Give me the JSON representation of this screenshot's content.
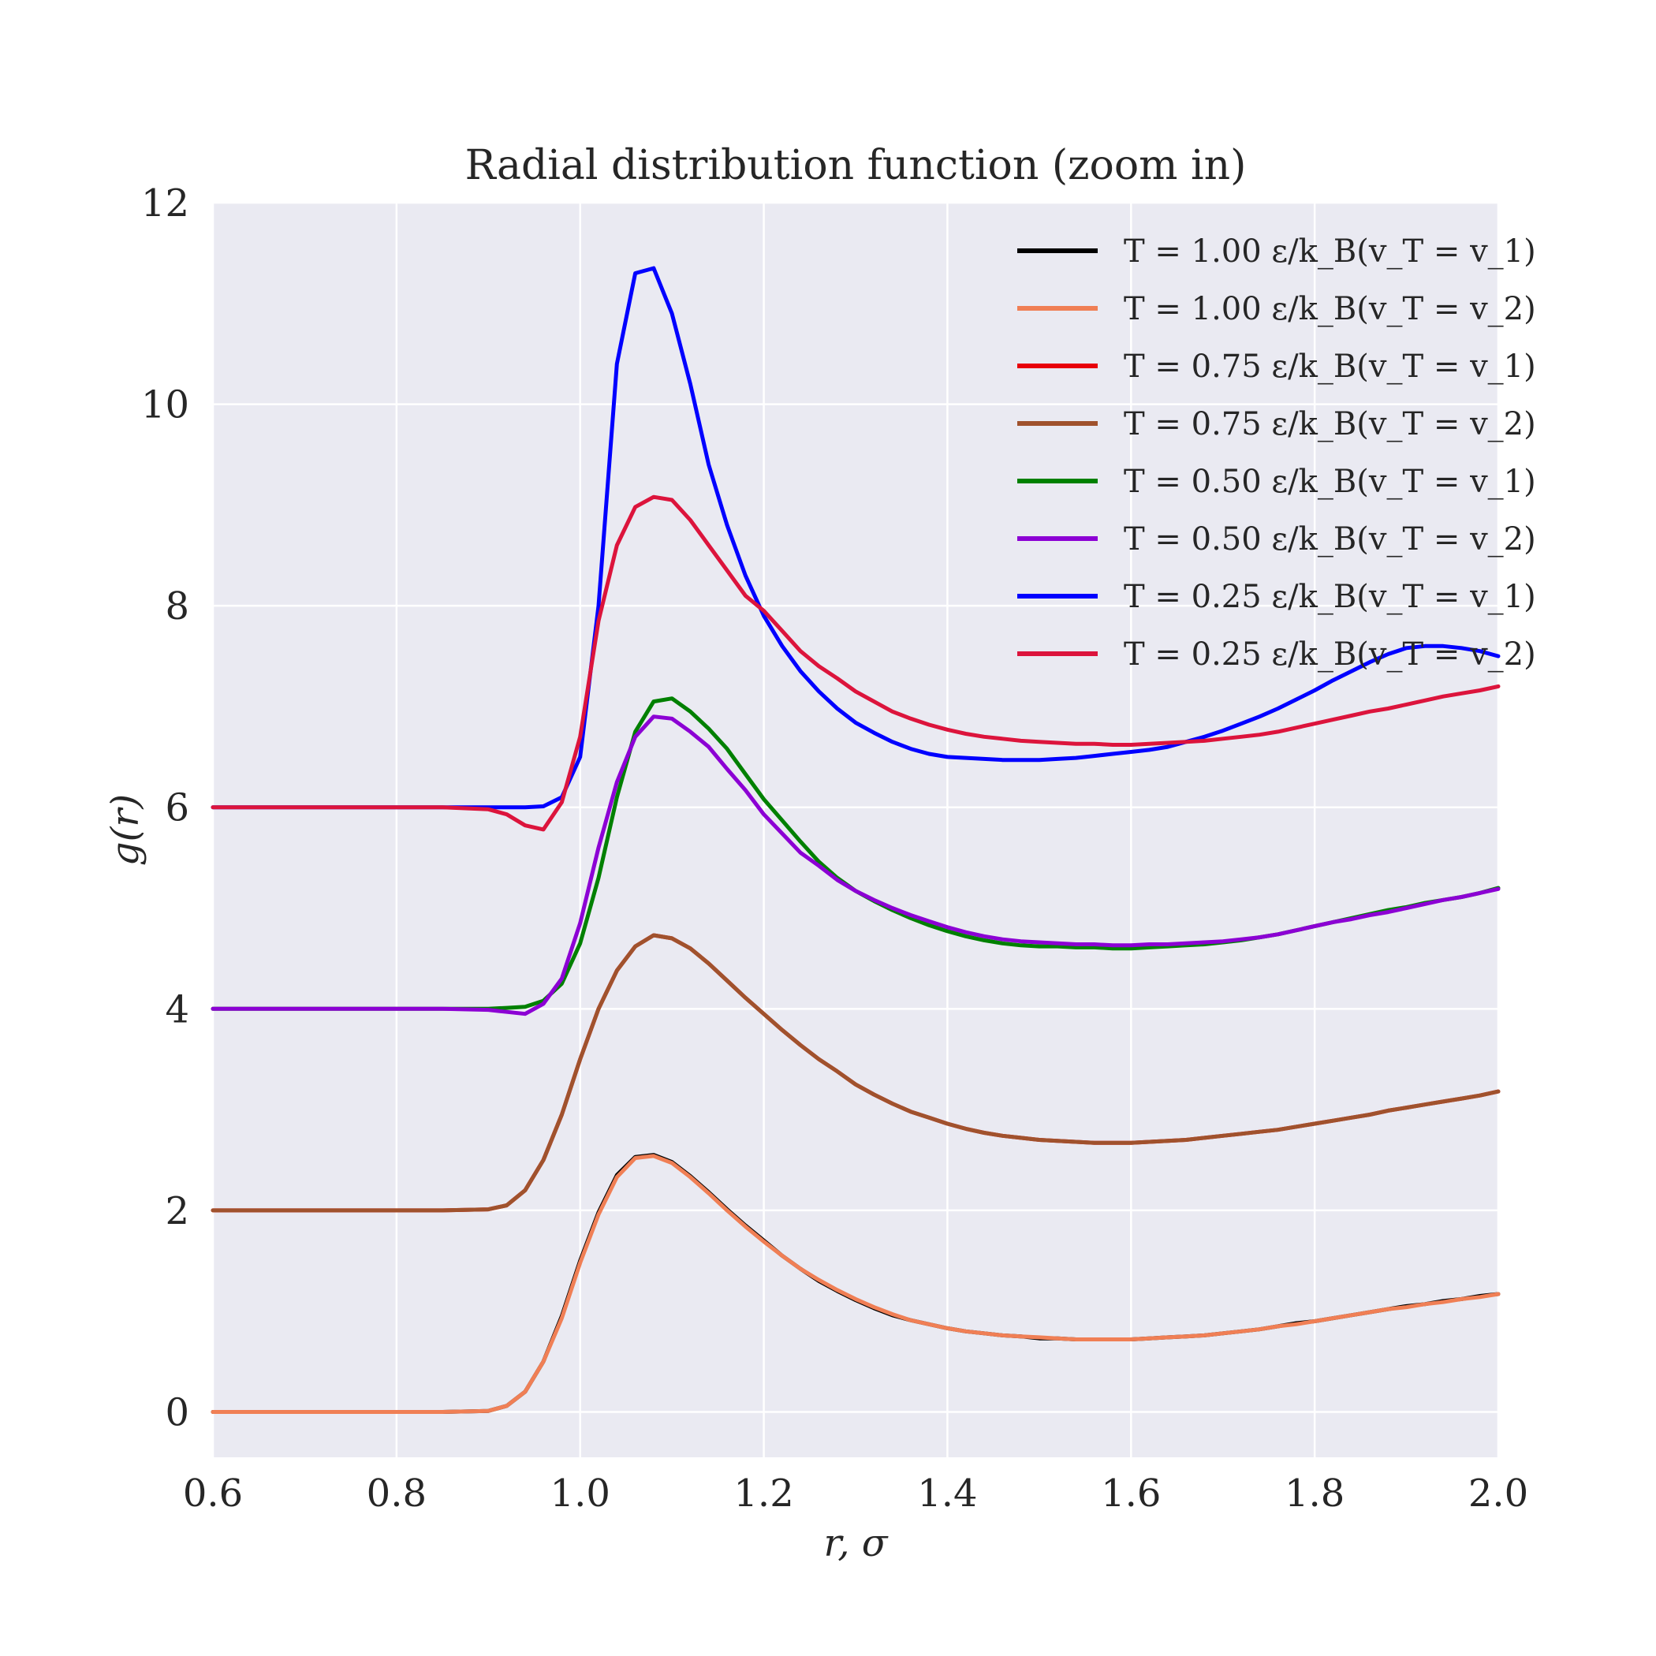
{
  "chart_data": {
    "type": "line",
    "title": "Radial distribution function (zoom in)",
    "xlabel": "r, σ",
    "ylabel": "g(r)",
    "xlim": [
      0.6,
      2.0
    ],
    "ylim": [
      -0.45,
      12.0
    ],
    "xticks": [
      "0.6",
      "0.8",
      "1.0",
      "1.2",
      "1.4",
      "1.6",
      "1.8",
      "2.0"
    ],
    "yticks": [
      "0",
      "2",
      "4",
      "6",
      "8",
      "10",
      "12"
    ],
    "grid": true,
    "legend_position": "top-right",
    "x": [
      0.6,
      0.7,
      0.8,
      0.85,
      0.9,
      0.92,
      0.94,
      0.96,
      0.98,
      1.0,
      1.02,
      1.04,
      1.06,
      1.08,
      1.1,
      1.12,
      1.14,
      1.16,
      1.18,
      1.2,
      1.22,
      1.24,
      1.26,
      1.28,
      1.3,
      1.32,
      1.34,
      1.36,
      1.38,
      1.4,
      1.42,
      1.44,
      1.46,
      1.48,
      1.5,
      1.52,
      1.54,
      1.56,
      1.58,
      1.6,
      1.62,
      1.64,
      1.66,
      1.68,
      1.7,
      1.72,
      1.74,
      1.76,
      1.78,
      1.8,
      1.82,
      1.84,
      1.86,
      1.88,
      1.9,
      1.92,
      1.94,
      1.96,
      1.98,
      2.0
    ],
    "series": [
      {
        "name": "T = 1.00 ε/k_B(v_T = v_1)",
        "color": "#000000",
        "values": [
          0,
          0,
          0,
          0,
          0.01,
          0.06,
          0.2,
          0.5,
          0.95,
          1.5,
          1.98,
          2.35,
          2.53,
          2.55,
          2.48,
          2.34,
          2.18,
          2.01,
          1.85,
          1.7,
          1.55,
          1.42,
          1.3,
          1.2,
          1.11,
          1.03,
          0.96,
          0.91,
          0.87,
          0.83,
          0.8,
          0.78,
          0.76,
          0.75,
          0.73,
          0.73,
          0.72,
          0.72,
          0.72,
          0.72,
          0.73,
          0.74,
          0.75,
          0.76,
          0.78,
          0.8,
          0.82,
          0.85,
          0.88,
          0.9,
          0.93,
          0.96,
          0.99,
          1.02,
          1.05,
          1.07,
          1.1,
          1.12,
          1.15,
          1.17
        ]
      },
      {
        "name": "T = 1.00 ε/k_B(v_T = v_2)",
        "color": "#f07f55",
        "values": [
          0,
          0,
          0,
          0,
          0.01,
          0.06,
          0.2,
          0.5,
          0.93,
          1.48,
          1.96,
          2.33,
          2.52,
          2.54,
          2.47,
          2.33,
          2.17,
          2.0,
          1.84,
          1.69,
          1.55,
          1.42,
          1.31,
          1.21,
          1.12,
          1.04,
          0.97,
          0.91,
          0.87,
          0.83,
          0.8,
          0.78,
          0.76,
          0.75,
          0.74,
          0.73,
          0.72,
          0.72,
          0.72,
          0.72,
          0.73,
          0.74,
          0.75,
          0.76,
          0.78,
          0.8,
          0.82,
          0.85,
          0.87,
          0.9,
          0.93,
          0.96,
          0.99,
          1.02,
          1.04,
          1.07,
          1.09,
          1.12,
          1.14,
          1.17
        ]
      },
      {
        "name": "T = 0.75 ε/k_B(v_T = v_1)",
        "color": "#e8000b",
        "values": [
          2,
          2,
          2,
          2,
          2.01,
          2.05,
          2.2,
          2.5,
          2.95,
          3.5,
          4.0,
          4.38,
          4.62,
          4.73,
          4.7,
          4.6,
          4.45,
          4.28,
          4.11,
          3.95,
          3.79,
          3.64,
          3.5,
          3.38,
          3.25,
          3.15,
          3.06,
          2.98,
          2.92,
          2.86,
          2.81,
          2.77,
          2.74,
          2.72,
          2.7,
          2.69,
          2.68,
          2.67,
          2.67,
          2.67,
          2.68,
          2.69,
          2.7,
          2.72,
          2.74,
          2.76,
          2.78,
          2.8,
          2.83,
          2.86,
          2.89,
          2.92,
          2.95,
          2.99,
          3.02,
          3.05,
          3.08,
          3.11,
          3.14,
          3.18
        ]
      },
      {
        "name": "T = 0.75 ε/k_B(v_T = v_2)",
        "color": "#a0522d",
        "values": [
          2,
          2,
          2,
          2,
          2.01,
          2.05,
          2.2,
          2.5,
          2.95,
          3.5,
          4.0,
          4.38,
          4.62,
          4.73,
          4.7,
          4.6,
          4.45,
          4.28,
          4.11,
          3.95,
          3.79,
          3.64,
          3.5,
          3.38,
          3.25,
          3.15,
          3.06,
          2.98,
          2.92,
          2.86,
          2.81,
          2.77,
          2.74,
          2.72,
          2.7,
          2.69,
          2.68,
          2.67,
          2.67,
          2.67,
          2.68,
          2.69,
          2.7,
          2.72,
          2.74,
          2.76,
          2.78,
          2.8,
          2.83,
          2.86,
          2.89,
          2.92,
          2.95,
          2.99,
          3.02,
          3.05,
          3.08,
          3.11,
          3.14,
          3.18
        ]
      },
      {
        "name": "T = 0.50 ε/k_B(v_T = v_1)",
        "color": "#008000",
        "values": [
          4,
          4,
          4,
          4,
          4,
          4.01,
          4.02,
          4.08,
          4.25,
          4.65,
          5.3,
          6.1,
          6.75,
          7.05,
          7.08,
          6.95,
          6.78,
          6.58,
          6.33,
          6.08,
          5.87,
          5.66,
          5.46,
          5.3,
          5.17,
          5.07,
          4.98,
          4.9,
          4.83,
          4.77,
          4.72,
          4.68,
          4.65,
          4.63,
          4.62,
          4.62,
          4.61,
          4.61,
          4.6,
          4.6,
          4.61,
          4.62,
          4.63,
          4.64,
          4.66,
          4.68,
          4.71,
          4.74,
          4.78,
          4.82,
          4.86,
          4.9,
          4.94,
          4.98,
          5.01,
          5.05,
          5.08,
          5.11,
          5.15,
          5.2
        ]
      },
      {
        "name": "T = 0.50 ε/k_B(v_T = v_2)",
        "color": "#8c00d4",
        "values": [
          4,
          4,
          4,
          4,
          3.99,
          3.97,
          3.95,
          4.05,
          4.3,
          4.85,
          5.6,
          6.25,
          6.7,
          6.9,
          6.88,
          6.75,
          6.6,
          6.38,
          6.17,
          5.93,
          5.74,
          5.55,
          5.42,
          5.28,
          5.17,
          5.08,
          5.0,
          4.93,
          4.87,
          4.81,
          4.76,
          4.72,
          4.69,
          4.67,
          4.66,
          4.65,
          4.64,
          4.64,
          4.63,
          4.63,
          4.64,
          4.64,
          4.65,
          4.66,
          4.67,
          4.69,
          4.71,
          4.74,
          4.78,
          4.82,
          4.86,
          4.89,
          4.93,
          4.96,
          5.0,
          5.04,
          5.08,
          5.11,
          5.15,
          5.19
        ]
      },
      {
        "name": "T = 0.25 ε/k_B(v_T = v_1)",
        "color": "#0000ff",
        "values": [
          6,
          6,
          6,
          6,
          6,
          6,
          6,
          6.01,
          6.1,
          6.5,
          8.0,
          10.4,
          11.3,
          11.35,
          10.9,
          10.2,
          9.4,
          8.8,
          8.3,
          7.9,
          7.6,
          7.35,
          7.15,
          6.98,
          6.84,
          6.74,
          6.65,
          6.58,
          6.53,
          6.5,
          6.49,
          6.48,
          6.47,
          6.47,
          6.47,
          6.48,
          6.49,
          6.51,
          6.53,
          6.55,
          6.57,
          6.6,
          6.65,
          6.7,
          6.76,
          6.83,
          6.9,
          6.98,
          7.07,
          7.16,
          7.26,
          7.35,
          7.44,
          7.52,
          7.58,
          7.6,
          7.6,
          7.58,
          7.55,
          7.5
        ]
      },
      {
        "name": "T = 0.25 ε/k_B(v_T = v_2)",
        "color": "#dc143c",
        "values": [
          6,
          6,
          6,
          6,
          5.98,
          5.93,
          5.82,
          5.78,
          6.05,
          6.7,
          7.85,
          8.6,
          8.98,
          9.08,
          9.05,
          8.85,
          8.6,
          8.35,
          8.1,
          7.95,
          7.75,
          7.55,
          7.4,
          7.28,
          7.15,
          7.05,
          6.95,
          6.88,
          6.82,
          6.77,
          6.73,
          6.7,
          6.68,
          6.66,
          6.65,
          6.64,
          6.63,
          6.63,
          6.62,
          6.62,
          6.63,
          6.64,
          6.65,
          6.66,
          6.68,
          6.7,
          6.72,
          6.75,
          6.79,
          6.83,
          6.87,
          6.91,
          6.95,
          6.98,
          7.02,
          7.06,
          7.1,
          7.13,
          7.16,
          7.2
        ]
      }
    ]
  }
}
